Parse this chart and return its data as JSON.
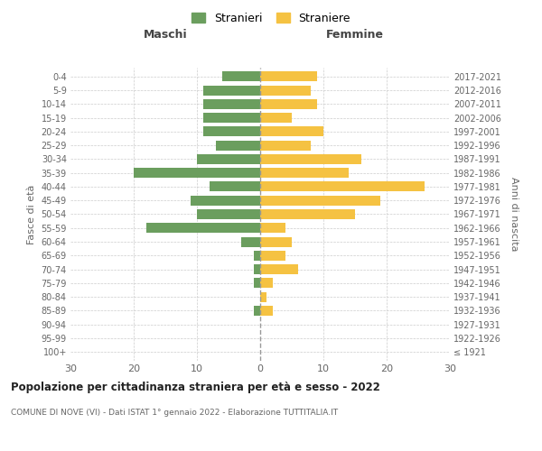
{
  "age_groups": [
    "100+",
    "95-99",
    "90-94",
    "85-89",
    "80-84",
    "75-79",
    "70-74",
    "65-69",
    "60-64",
    "55-59",
    "50-54",
    "45-49",
    "40-44",
    "35-39",
    "30-34",
    "25-29",
    "20-24",
    "15-19",
    "10-14",
    "5-9",
    "0-4"
  ],
  "birth_years": [
    "≤ 1921",
    "1922-1926",
    "1927-1931",
    "1932-1936",
    "1937-1941",
    "1942-1946",
    "1947-1951",
    "1952-1956",
    "1957-1961",
    "1962-1966",
    "1967-1971",
    "1972-1976",
    "1977-1981",
    "1982-1986",
    "1987-1991",
    "1992-1996",
    "1997-2001",
    "2002-2006",
    "2007-2011",
    "2012-2016",
    "2017-2021"
  ],
  "maschi": [
    0,
    0,
    0,
    1,
    0,
    1,
    1,
    1,
    3,
    18,
    10,
    11,
    8,
    20,
    10,
    7,
    9,
    9,
    9,
    9,
    6
  ],
  "femmine": [
    0,
    0,
    0,
    2,
    1,
    2,
    6,
    4,
    5,
    4,
    15,
    19,
    26,
    14,
    16,
    8,
    10,
    5,
    9,
    8,
    9
  ],
  "maschi_color": "#6b9e5e",
  "femmine_color": "#f5c242",
  "title": "Popolazione per cittadinanza straniera per età e sesso - 2022",
  "subtitle": "COMUNE DI NOVE (VI) - Dati ISTAT 1° gennaio 2022 - Elaborazione TUTTITALIA.IT",
  "xlabel_left": "Maschi",
  "xlabel_right": "Femmine",
  "ylabel_left": "Fasce di età",
  "ylabel_right": "Anni di nascita",
  "legend_maschi": "Stranieri",
  "legend_femmine": "Straniere",
  "xlim": 30,
  "background_color": "#ffffff",
  "grid_color": "#cccccc"
}
